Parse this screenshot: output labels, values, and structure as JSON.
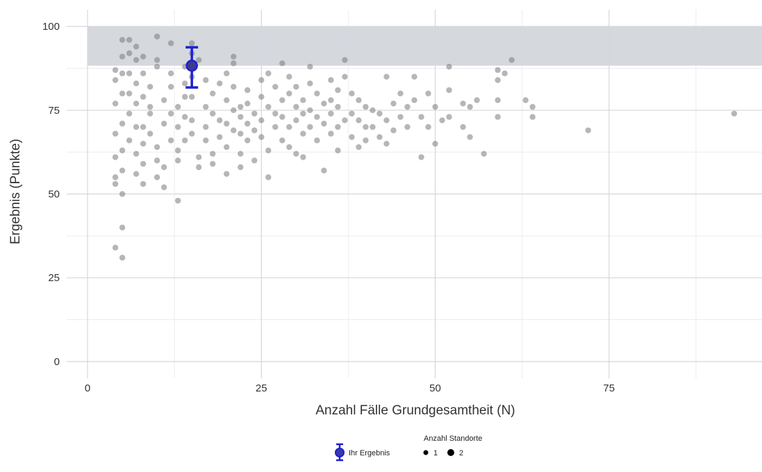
{
  "chart_data": {
    "type": "scatter",
    "title": "",
    "xlabel": "Anzahl Fälle Grundgesamtheit (N)",
    "ylabel": "Ergebnis (Punkte)",
    "xlim": [
      -3,
      97
    ],
    "ylim": [
      -5,
      105
    ],
    "x_ticks": [
      0,
      25,
      50,
      75
    ],
    "y_ticks": [
      0,
      25,
      50,
      75,
      100
    ],
    "x_tick_labels": [
      "0",
      "25",
      "50",
      "75"
    ],
    "y_tick_labels": [
      "0",
      "25",
      "50",
      "75",
      "100"
    ],
    "grid": true,
    "reference_band": {
      "y_from": 88.3,
      "y_to": 100,
      "color": "#d3d7dc"
    },
    "highlight": {
      "x": 15,
      "y": 88.3,
      "y_low": 81.8,
      "y_high": 93.8,
      "color": "#1f1fd1"
    },
    "points_color": "#7a7a7a",
    "points": [
      [
        4,
        34
      ],
      [
        5,
        31
      ],
      [
        5,
        40
      ],
      [
        5,
        50
      ],
      [
        4,
        53
      ],
      [
        4,
        55
      ],
      [
        5,
        57
      ],
      [
        4,
        61
      ],
      [
        5,
        63
      ],
      [
        4,
        68
      ],
      [
        5,
        71
      ],
      [
        4,
        77
      ],
      [
        5,
        80
      ],
      [
        4,
        84
      ],
      [
        5,
        86
      ],
      [
        4,
        87
      ],
      [
        5,
        91
      ],
      [
        5,
        96
      ],
      [
        6,
        96
      ],
      [
        6,
        92
      ],
      [
        7,
        94
      ],
      [
        7,
        90
      ],
      [
        8,
        91
      ],
      [
        6,
        86
      ],
      [
        7,
        83
      ],
      [
        6,
        80
      ],
      [
        7,
        77
      ],
      [
        6,
        74
      ],
      [
        7,
        70
      ],
      [
        6,
        66
      ],
      [
        7,
        62
      ],
      [
        7,
        56
      ],
      [
        8,
        53
      ],
      [
        8,
        59
      ],
      [
        8,
        65
      ],
      [
        8,
        70
      ],
      [
        9,
        74
      ],
      [
        8,
        79
      ],
      [
        9,
        82
      ],
      [
        8,
        86
      ],
      [
        10,
        90
      ],
      [
        10,
        88
      ],
      [
        10,
        97
      ],
      [
        9,
        76
      ],
      [
        9,
        68
      ],
      [
        10,
        64
      ],
      [
        10,
        60
      ],
      [
        10,
        55
      ],
      [
        11,
        58
      ],
      [
        11,
        52
      ],
      [
        11,
        71
      ],
      [
        12,
        74
      ],
      [
        11,
        78
      ],
      [
        12,
        82
      ],
      [
        12,
        86
      ],
      [
        12,
        95
      ],
      [
        13,
        48
      ],
      [
        13,
        60
      ],
      [
        12,
        66
      ],
      [
        13,
        70
      ],
      [
        13,
        76
      ],
      [
        14,
        79
      ],
      [
        14,
        83
      ],
      [
        14,
        73
      ],
      [
        14,
        66
      ],
      [
        13,
        63
      ],
      [
        14,
        88
      ],
      [
        15,
        92
      ],
      [
        15,
        95
      ],
      [
        15,
        85
      ],
      [
        15,
        79
      ],
      [
        15,
        72
      ],
      [
        15,
        68
      ],
      [
        16,
        61
      ],
      [
        16,
        58
      ],
      [
        16,
        90
      ],
      [
        17,
        84
      ],
      [
        17,
        76
      ],
      [
        17,
        70
      ],
      [
        17,
        66
      ],
      [
        18,
        62
      ],
      [
        18,
        59
      ],
      [
        18,
        80
      ],
      [
        18,
        74
      ],
      [
        19,
        72
      ],
      [
        19,
        67
      ],
      [
        19,
        83
      ],
      [
        20,
        86
      ],
      [
        20,
        78
      ],
      [
        20,
        71
      ],
      [
        20,
        64
      ],
      [
        20,
        56
      ],
      [
        21,
        91
      ],
      [
        21,
        89
      ],
      [
        21,
        82
      ],
      [
        21,
        75
      ],
      [
        21,
        69
      ],
      [
        22,
        76
      ],
      [
        22,
        73
      ],
      [
        22,
        68
      ],
      [
        22,
        62
      ],
      [
        22,
        58
      ],
      [
        23,
        81
      ],
      [
        23,
        77
      ],
      [
        23,
        71
      ],
      [
        23,
        66
      ],
      [
        24,
        74
      ],
      [
        24,
        69
      ],
      [
        24,
        60
      ],
      [
        25,
        84
      ],
      [
        25,
        79
      ],
      [
        25,
        72
      ],
      [
        25,
        67
      ],
      [
        26,
        63
      ],
      [
        26,
        55
      ],
      [
        26,
        86
      ],
      [
        26,
        76
      ],
      [
        27,
        82
      ],
      [
        27,
        74
      ],
      [
        27,
        70
      ],
      [
        28,
        89
      ],
      [
        28,
        78
      ],
      [
        28,
        73
      ],
      [
        28,
        66
      ],
      [
        29,
        85
      ],
      [
        29,
        80
      ],
      [
        29,
        70
      ],
      [
        29,
        64
      ],
      [
        30,
        82
      ],
      [
        30,
        76
      ],
      [
        30,
        72
      ],
      [
        30,
        62
      ],
      [
        31,
        78
      ],
      [
        31,
        74
      ],
      [
        31,
        68
      ],
      [
        31,
        61
      ],
      [
        32,
        88
      ],
      [
        32,
        83
      ],
      [
        32,
        75
      ],
      [
        32,
        70
      ],
      [
        33,
        80
      ],
      [
        33,
        73
      ],
      [
        33,
        66
      ],
      [
        34,
        77
      ],
      [
        34,
        71
      ],
      [
        34,
        57
      ],
      [
        35,
        84
      ],
      [
        35,
        78
      ],
      [
        35,
        74
      ],
      [
        35,
        68
      ],
      [
        36,
        81
      ],
      [
        36,
        76
      ],
      [
        36,
        70
      ],
      [
        36,
        63
      ],
      [
        37,
        90
      ],
      [
        37,
        85
      ],
      [
        37,
        72
      ],
      [
        38,
        80
      ],
      [
        38,
        74
      ],
      [
        38,
        67
      ],
      [
        39,
        78
      ],
      [
        39,
        72
      ],
      [
        39,
        64
      ],
      [
        40,
        76
      ],
      [
        40,
        70
      ],
      [
        40,
        66
      ],
      [
        41,
        75
      ],
      [
        41,
        70
      ],
      [
        42,
        74
      ],
      [
        42,
        67
      ],
      [
        43,
        85
      ],
      [
        43,
        72
      ],
      [
        43,
        65
      ],
      [
        44,
        77
      ],
      [
        44,
        69
      ],
      [
        45,
        80
      ],
      [
        45,
        73
      ],
      [
        46,
        76
      ],
      [
        46,
        70
      ],
      [
        47,
        85
      ],
      [
        47,
        78
      ],
      [
        48,
        73
      ],
      [
        48,
        61
      ],
      [
        49,
        80
      ],
      [
        49,
        70
      ],
      [
        50,
        76
      ],
      [
        50,
        65
      ],
      [
        51,
        72
      ],
      [
        52,
        88
      ],
      [
        52,
        81
      ],
      [
        52,
        73
      ],
      [
        54,
        77
      ],
      [
        54,
        70
      ],
      [
        55,
        76
      ],
      [
        55,
        67
      ],
      [
        56,
        78
      ],
      [
        57,
        62
      ],
      [
        59,
        87
      ],
      [
        59,
        84
      ],
      [
        59,
        78
      ],
      [
        59,
        73
      ],
      [
        60,
        86
      ],
      [
        61,
        90
      ],
      [
        63,
        78
      ],
      [
        64,
        76
      ],
      [
        64,
        73
      ],
      [
        72,
        69
      ],
      [
        93,
        74
      ]
    ],
    "legend": {
      "highlight_label": "Ihr Ergebnis",
      "size_title": "Anzahl Standorte",
      "size_items": [
        "1",
        "2"
      ]
    }
  }
}
